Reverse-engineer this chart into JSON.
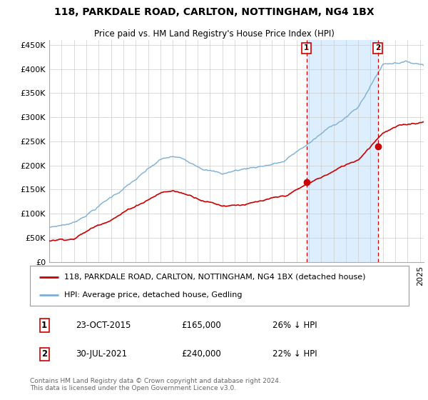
{
  "title": "118, PARKDALE ROAD, CARLTON, NOTTINGHAM, NG4 1BX",
  "subtitle": "Price paid vs. HM Land Registry's House Price Index (HPI)",
  "ylabel_ticks": [
    "£0",
    "£50K",
    "£100K",
    "£150K",
    "£200K",
    "£250K",
    "£300K",
    "£350K",
    "£400K",
    "£450K"
  ],
  "ytick_values": [
    0,
    50000,
    100000,
    150000,
    200000,
    250000,
    300000,
    350000,
    400000,
    450000
  ],
  "ylim": [
    0,
    460000
  ],
  "xlim_start": 1995.0,
  "xlim_end": 2025.3,
  "sale1": {
    "date": 2015.81,
    "price": 165000,
    "label": "1",
    "text": "23-OCT-2015",
    "amount": "£165,000",
    "pct": "26% ↓ HPI"
  },
  "sale2": {
    "date": 2021.58,
    "price": 240000,
    "label": "2",
    "text": "30-JUL-2021",
    "amount": "£240,000",
    "pct": "22% ↓ HPI"
  },
  "legend_line1": "118, PARKDALE ROAD, CARLTON, NOTTINGHAM, NG4 1BX (detached house)",
  "legend_line2": "HPI: Average price, detached house, Gedling",
  "footnote": "Contains HM Land Registry data © Crown copyright and database right 2024.\nThis data is licensed under the Open Government Licence v3.0.",
  "red_color": "#cc0000",
  "blue_color": "#7bafd4",
  "shade_color": "#ddeeff",
  "title_fontsize": 10,
  "subtitle_fontsize": 8.5,
  "tick_fontsize": 8,
  "legend_fontsize": 8,
  "footnote_fontsize": 6.5
}
